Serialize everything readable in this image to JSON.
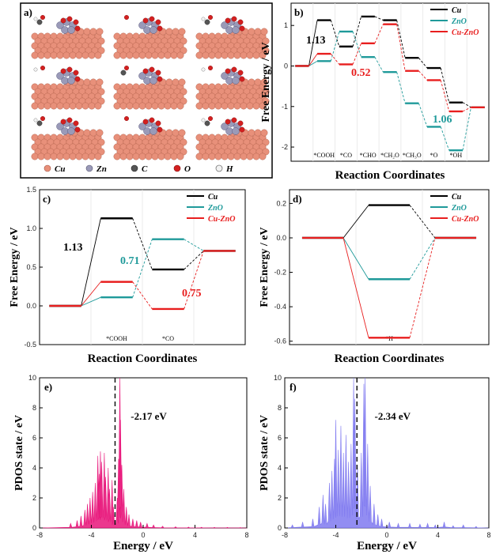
{
  "panels": {
    "a": {
      "label": "a)",
      "legend": [
        {
          "symbol": "Cu",
          "color": "#e8907a"
        },
        {
          "symbol": "Zn",
          "color": "#9a9ab8"
        },
        {
          "symbol": "C",
          "color": "#555555"
        },
        {
          "symbol": "O",
          "color": "#d42020"
        },
        {
          "symbol": "H",
          "color": "#f2f2f2"
        }
      ]
    }
  },
  "chart_data": [
    {
      "id": "b",
      "type": "line",
      "panel_label": "b)",
      "ylabel": "Free Energy / eV",
      "xlabel": "Reaction Coordinates",
      "ylim": [
        -2.3,
        1.5
      ],
      "yticks": [
        -2,
        -1,
        0,
        1
      ],
      "categories": [
        "",
        "*COOH",
        "*CO",
        "*CHO",
        "*CH₂O",
        "*CH₃O",
        "*O",
        "*OH",
        ""
      ],
      "series": [
        {
          "name": "Cu",
          "color": "#000000",
          "values": [
            0,
            1.13,
            0.48,
            1.22,
            1.13,
            0.2,
            -0.05,
            -0.9,
            -1.02
          ]
        },
        {
          "name": "ZnO",
          "color": "#1f9a9a",
          "values": [
            0,
            0.12,
            0.85,
            0.22,
            -0.15,
            -0.92,
            -1.5,
            -2.08,
            -1.02
          ]
        },
        {
          "name": "Cu-ZnO",
          "color": "#e81e1e",
          "values": [
            0,
            0.3,
            0.04,
            0.56,
            1.03,
            -0.12,
            -0.35,
            -1.12,
            -1.02
          ]
        }
      ],
      "annotations": [
        {
          "text": "1.13",
          "color": "#000000"
        },
        {
          "text": "0.52",
          "color": "#e81e1e"
        },
        {
          "text": "1.06",
          "color": "#1f9a9a"
        }
      ]
    },
    {
      "id": "c",
      "type": "line",
      "panel_label": "c)",
      "ylabel": "Free Energy / eV",
      "xlabel": "Reaction Coordinates",
      "ylim": [
        -0.5,
        1.5
      ],
      "yticks": [
        "-0.5",
        "0.0",
        "0.5",
        "1.0",
        "1.5"
      ],
      "categories": [
        "",
        "*COOH",
        "*CO",
        ""
      ],
      "series": [
        {
          "name": "Cu",
          "color": "#000000",
          "values": [
            0,
            1.13,
            0.47,
            0.71
          ]
        },
        {
          "name": "ZnO",
          "color": "#1f9a9a",
          "values": [
            0,
            0.11,
            0.86,
            0.71
          ]
        },
        {
          "name": "Cu-ZnO",
          "color": "#e81e1e",
          "values": [
            0,
            0.31,
            -0.04,
            0.71
          ]
        }
      ],
      "annotations": [
        {
          "text": "1.13",
          "color": "#000000"
        },
        {
          "text": "0.71",
          "color": "#1f9a9a"
        },
        {
          "text": "0.75",
          "color": "#e81e1e"
        }
      ]
    },
    {
      "id": "d",
      "type": "line",
      "panel_label": "d)",
      "ylabel": "Free Energy / eV",
      "xlabel": "Reaction Coordinates",
      "ylim": [
        -0.6,
        0.25
      ],
      "yticks": [
        "0.2",
        "0.0",
        "-0.2",
        "-0.4",
        "-0.6"
      ],
      "categories": [
        "",
        "*H",
        ""
      ],
      "series": [
        {
          "name": "Cu",
          "color": "#000000",
          "values": [
            0,
            0.19,
            0
          ]
        },
        {
          "name": "ZnO",
          "color": "#1f9a9a",
          "values": [
            0,
            -0.24,
            0
          ]
        },
        {
          "name": "Cu-ZnO",
          "color": "#e81e1e",
          "values": [
            0,
            -0.58,
            0
          ]
        }
      ]
    },
    {
      "id": "e",
      "type": "area",
      "panel_label": "e)",
      "ylabel": "PDOS state / eV",
      "xlabel": "Energy / eV",
      "xlim": [
        -8,
        8
      ],
      "ylim": [
        0,
        10
      ],
      "xticks": [
        -8,
        -4,
        0,
        4,
        8
      ],
      "yticks": [
        0,
        2,
        4,
        6,
        8,
        10
      ],
      "color": "#e8157a",
      "center": -2.17,
      "center_label": "-2.17 eV",
      "peaks": [
        [
          -5.6,
          0.3
        ],
        [
          -5.1,
          0.5
        ],
        [
          -4.8,
          0.8
        ],
        [
          -4.5,
          1.2
        ],
        [
          -4.3,
          1.6
        ],
        [
          -4.1,
          2.0
        ],
        [
          -3.9,
          2.4
        ],
        [
          -3.7,
          3.0
        ],
        [
          -3.5,
          4.8
        ],
        [
          -3.4,
          3.6
        ],
        [
          -3.3,
          5.1
        ],
        [
          -3.2,
          4.4
        ],
        [
          -3.0,
          5.0
        ],
        [
          -2.9,
          3.4
        ],
        [
          -2.7,
          4.0
        ],
        [
          -2.6,
          2.6
        ],
        [
          -2.4,
          3.2
        ],
        [
          -2.3,
          1.4
        ],
        [
          -2.0,
          2.0
        ],
        [
          -1.9,
          4.6
        ],
        [
          -1.8,
          10
        ],
        [
          -1.75,
          7.2
        ],
        [
          -1.65,
          4.2
        ],
        [
          -1.5,
          2.6
        ],
        [
          -1.3,
          1.4
        ],
        [
          -1.1,
          0.9
        ],
        [
          -0.8,
          0.6
        ],
        [
          -0.5,
          0.5
        ],
        [
          -0.2,
          0.4
        ],
        [
          0.3,
          0.3
        ],
        [
          0.8,
          0.2
        ],
        [
          1.5,
          0.12
        ],
        [
          2.5,
          0.08
        ],
        [
          3.5,
          0.06
        ],
        [
          4.5,
          0.05
        ],
        [
          5.5,
          0.04
        ],
        [
          6.5,
          0.04
        ],
        [
          7.5,
          0.03
        ]
      ]
    },
    {
      "id": "f",
      "type": "area",
      "panel_label": "f)",
      "ylabel": "PDOS state / eV",
      "xlabel": "Energy / eV",
      "xlim": [
        -8,
        8
      ],
      "ylim": [
        0,
        10
      ],
      "xticks": [
        -8,
        -4,
        0,
        4,
        8
      ],
      "yticks": [
        0,
        2,
        4,
        6,
        8,
        10
      ],
      "color": "#7f79f0",
      "center": -2.34,
      "center_label": "-2.34 eV",
      "peaks": [
        [
          -7.4,
          0.2
        ],
        [
          -6.6,
          0.4
        ],
        [
          -5.8,
          0.6
        ],
        [
          -5.3,
          1.4
        ],
        [
          -5.0,
          2.2
        ],
        [
          -4.8,
          1.6
        ],
        [
          -4.5,
          3.0
        ],
        [
          -4.3,
          3.8
        ],
        [
          -4.1,
          4.6
        ],
        [
          -4.0,
          7.2
        ],
        [
          -3.8,
          5.2
        ],
        [
          -3.6,
          6.8
        ],
        [
          -3.4,
          5.0
        ],
        [
          -3.2,
          6.2
        ],
        [
          -3.0,
          4.4
        ],
        [
          -2.8,
          5.6
        ],
        [
          -2.6,
          10
        ],
        [
          -2.5,
          8.6
        ],
        [
          -2.3,
          4.2
        ],
        [
          -2.0,
          5.0
        ],
        [
          -1.8,
          9.6
        ],
        [
          -1.7,
          10
        ],
        [
          -1.5,
          5.6
        ],
        [
          -1.3,
          2.8
        ],
        [
          -1.0,
          1.6
        ],
        [
          -0.7,
          0.9
        ],
        [
          -0.4,
          0.6
        ],
        [
          0.2,
          0.4
        ],
        [
          0.9,
          0.3
        ],
        [
          1.8,
          0.3
        ],
        [
          2.6,
          0.25
        ],
        [
          3.2,
          0.3
        ],
        [
          3.8,
          0.2
        ],
        [
          4.5,
          0.4
        ],
        [
          5.2,
          0.15
        ],
        [
          6.0,
          0.2
        ],
        [
          7.0,
          0.1
        ]
      ]
    }
  ]
}
